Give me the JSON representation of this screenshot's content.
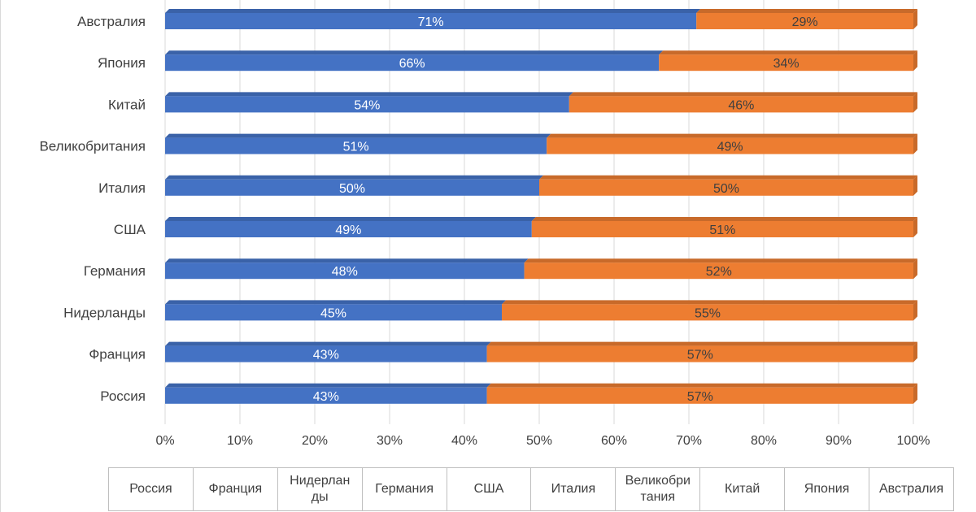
{
  "chart_data": {
    "type": "bar",
    "orientation": "horizontal",
    "stacked": "percent",
    "categories": [
      "Австралия",
      "Япония",
      "Китай",
      "Великобритания",
      "Италия",
      "США",
      "Германия",
      "Нидерланды",
      "Франция",
      "Россия"
    ],
    "series": [
      {
        "values": [
          71,
          66,
          54,
          51,
          50,
          49,
          48,
          45,
          43,
          43
        ],
        "labels": [
          "71%",
          "66%",
          "54%",
          "51%",
          "50%",
          "49%",
          "48%",
          "45%",
          "43%",
          "43%"
        ]
      },
      {
        "values": [
          29,
          34,
          46,
          49,
          50,
          51,
          52,
          55,
          57,
          57
        ],
        "labels": [
          "29%",
          "34%",
          "46%",
          "49%",
          "50%",
          "51%",
          "52%",
          "55%",
          "57%",
          "57%"
        ]
      }
    ],
    "x_ticks": [
      "0%",
      "10%",
      "20%",
      "30%",
      "40%",
      "50%",
      "60%",
      "70%",
      "80%",
      "90%",
      "100%"
    ],
    "xlim": [
      0,
      100
    ],
    "grid": true,
    "colors": {
      "series_1": "#4472c4",
      "series_2": "#ed7d31",
      "series_1_top": "#3a62a8",
      "series_2_top": "#c86a2a",
      "grid": "#d9d9d9",
      "text": "#404040"
    },
    "data_table": {
      "header": [
        "Россия",
        "Франция",
        "Нидерланды",
        "Германия",
        "США",
        "Италия",
        "Великобритания",
        "Китай",
        "Япония",
        "Австралия"
      ],
      "header_display": [
        "Россия",
        "Франция",
        "Нидерлан\nды",
        "Германия",
        "США",
        "Италия",
        "Великобри\nтания",
        "Китай",
        "Япония",
        "Австралия"
      ]
    }
  }
}
